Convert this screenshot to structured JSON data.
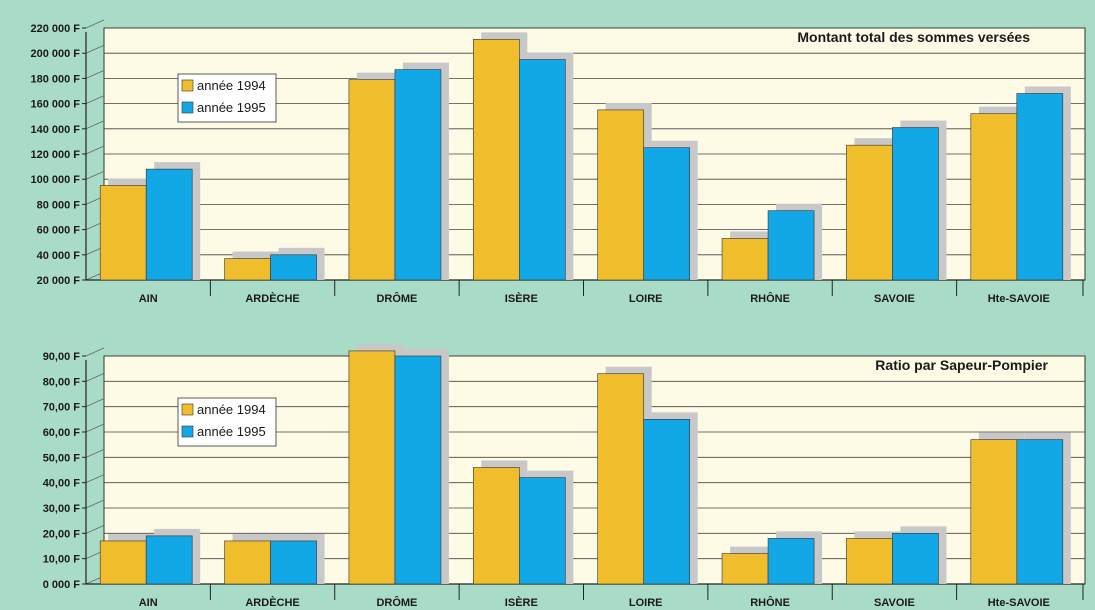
{
  "colors": {
    "background": "#a9dcc6",
    "plot_area": "#fdfbe6",
    "series_1994": "#f0bd2c",
    "series_1995": "#12a7e6",
    "shadow": "#c8c8c8"
  },
  "chart_data": [
    {
      "type": "bar",
      "title": "Montant total des sommes versées",
      "categories": [
        "AIN",
        "ARDÈCHE",
        "DRÔME",
        "ISÈRE",
        "LOIRE",
        "RHÔNE",
        "SAVOIE",
        "Hte-SAVOIE"
      ],
      "series": [
        {
          "name": "année 1994",
          "values": [
            95000,
            37000,
            179000,
            211000,
            155000,
            53000,
            127000,
            152000
          ]
        },
        {
          "name": "année 1995",
          "values": [
            108000,
            40000,
            187000,
            195000,
            125000,
            75000,
            141000,
            168000
          ]
        }
      ],
      "ylim": [
        20000,
        220000
      ],
      "yticks": [
        20000,
        40000,
        60000,
        80000,
        100000,
        120000,
        140000,
        160000,
        180000,
        200000,
        220000
      ],
      "ytick_labels": [
        "20 000 F",
        "40 000 F",
        "60 000 F",
        "80 000 F",
        "100 000 F",
        "120 000 F",
        "140 000 F",
        "160 000 F",
        "180 000 F",
        "200 000 F",
        "220 000 F"
      ],
      "grid": true,
      "legend_position": "upper-left"
    },
    {
      "type": "bar",
      "title": "Ratio par Sapeur-Pompier",
      "categories": [
        "AIN",
        "ARDÈCHE",
        "DRÔME",
        "ISÈRE",
        "LOIRE",
        "RHÔNE",
        "SAVOIE",
        "Hte-SAVOIE"
      ],
      "series": [
        {
          "name": "année 1994",
          "values": [
            17,
            17,
            92,
            46,
            83,
            12,
            18,
            57
          ]
        },
        {
          "name": "année 1995",
          "values": [
            19,
            17,
            90,
            42,
            65,
            18,
            20,
            57
          ]
        }
      ],
      "ylim": [
        0,
        90
      ],
      "yticks": [
        0,
        10,
        20,
        30,
        40,
        50,
        60,
        70,
        80,
        90
      ],
      "ytick_labels": [
        "0 000 F",
        "10,00 F",
        "20,00 F",
        "30,00 F",
        "40,00 F",
        "50,00 F",
        "60,00 F",
        "70,00 F",
        "80,00 F",
        "90,00 F"
      ],
      "grid": true,
      "legend_position": "upper-left"
    }
  ]
}
